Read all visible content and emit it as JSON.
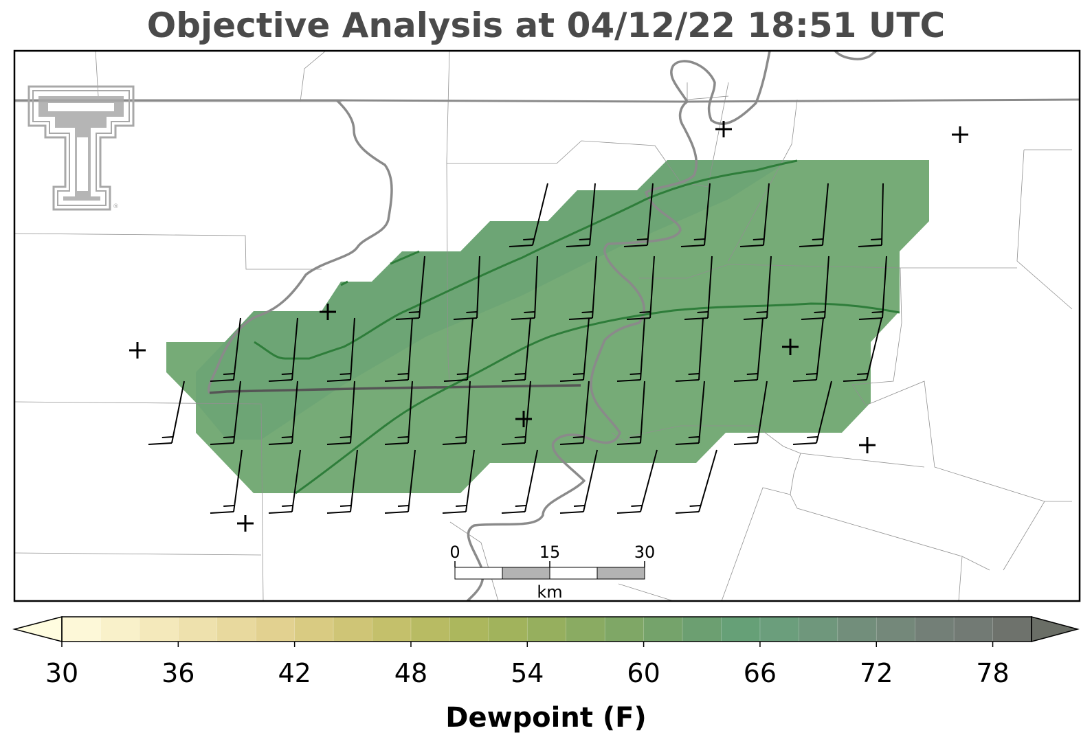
{
  "title": "Objective Analysis at 04/12/22 18:51 UTC",
  "logo": {
    "name": "texas-tech-double-t-logo",
    "color": "#a8a8a8",
    "mark": "®"
  },
  "map": {
    "shading_color": "#6fa670",
    "contour_color": "#2e7d3a",
    "river_color": "#8a8a8a",
    "station_marker": "+"
  },
  "scale_bar": {
    "ticks": [
      "0",
      "15",
      "30"
    ],
    "unit": "km"
  },
  "colorbar": {
    "label": "Dewpoint (F)",
    "min": 30,
    "max": 80,
    "step": 2,
    "tick_labels": [
      "30",
      "36",
      "42",
      "48",
      "54",
      "60",
      "66",
      "72",
      "78"
    ],
    "extend": "both",
    "colors": [
      "#fdf8d8",
      "#f9f1ca",
      "#f4e9bb",
      "#eee1ad",
      "#e8d99e",
      "#e2d190",
      "#d9cb82",
      "#cfc576",
      "#c4c06b",
      "#b8bb63",
      "#acb75d",
      "#a1b35c",
      "#96af5e",
      "#8aab62",
      "#7fa766",
      "#75a36b",
      "#6c9f71",
      "#66a077",
      "#6b9e7c",
      "#6f977c",
      "#728e7b",
      "#74887a",
      "#737f77",
      "#727a74",
      "#6e726c"
    ]
  },
  "chart_data": {
    "type": "heatmap",
    "variable": "Dewpoint (F)",
    "colorbar_range": [
      30,
      80
    ],
    "analysis_valid_range_estimate": [
      60,
      68
    ],
    "wind_barbs": "southwesterly to south-southwesterly barbs across the analysis grid"
  }
}
